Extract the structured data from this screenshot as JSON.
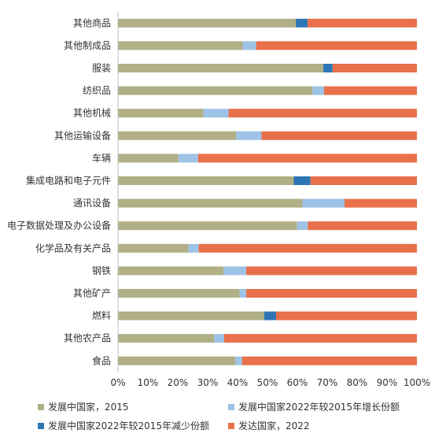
{
  "chart_data": {
    "type": "bar",
    "orientation": "horizontal",
    "stacked": "percent",
    "categories": [
      "其他商品",
      "其他制成品",
      "服装",
      "纺织品",
      "其他机械",
      "其他运输设备",
      "车辆",
      "集成电路和电子元件",
      "通讯设备",
      "电子数据处理及办公设备",
      "化学品及有关产品",
      "钢铁",
      "其他矿产",
      "燃料",
      "其他农产品",
      "食品"
    ],
    "series": [
      {
        "name": "发展中国家，2015",
        "color": "#B0AF86",
        "values": [
          59.5,
          41.7,
          68.7,
          65.1,
          28.6,
          39.5,
          20.2,
          58.8,
          61.7,
          59.9,
          23.6,
          35.3,
          40.7,
          48.9,
          32.2,
          39.3
        ]
      },
      {
        "name": "发展中国家2022年较2015年增长份额",
        "color": "#9DC3E6",
        "values": [
          0,
          4.5,
          0,
          3.8,
          8.4,
          8.5,
          6.6,
          0,
          14.1,
          3.6,
          3.4,
          7.6,
          2.2,
          0,
          3.3,
          2.2
        ]
      },
      {
        "name": "发展中国家2022年较2015年减少份额",
        "color": "#2E75B6",
        "values": [
          3.9,
          0,
          3.1,
          0,
          0,
          0,
          0,
          5.6,
          0,
          0,
          0,
          0,
          0,
          4.0,
          0,
          0
        ]
      },
      {
        "name": "发达国家，2022",
        "color": "#E8704A",
        "values": [
          36.6,
          53.8,
          28.2,
          31.1,
          63.0,
          52.0,
          73.2,
          35.6,
          24.2,
          36.5,
          73.0,
          57.1,
          57.1,
          47.1,
          64.5,
          58.5
        ]
      }
    ],
    "x_ticks": [
      "0%",
      "10%",
      "20%",
      "30%",
      "40%",
      "50%",
      "60%",
      "70%",
      "80%",
      "90%",
      "100%"
    ],
    "xlim": [
      0,
      100
    ],
    "grid": false,
    "legend_position": "bottom"
  }
}
